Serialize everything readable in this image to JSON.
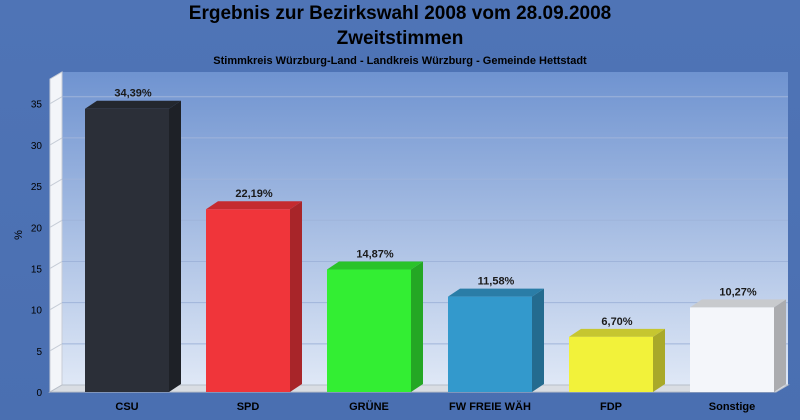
{
  "chart_data": {
    "type": "bar",
    "title": "Ergebnis zur Bezirkswahl 2008 vom 28.09.2008",
    "subtitle": "Zweitstimmen",
    "caption": "Stimmkreis Würzburg-Land - Landkreis Würzburg - Gemeinde Hettstadt",
    "ylabel": "%",
    "xlabel": "",
    "ylim": [
      0,
      38
    ],
    "yticks": [
      0,
      5,
      10,
      15,
      20,
      25,
      30,
      35
    ],
    "grid": true,
    "categories": [
      "CSU",
      "SPD",
      "GRÜNE",
      "FW FREIE WÄH",
      "FDP",
      "Sonstige"
    ],
    "values": [
      34.39,
      22.19,
      14.87,
      11.58,
      6.7,
      10.27
    ],
    "value_labels": [
      "34,39%",
      "22,19%",
      "14,87%",
      "11,58%",
      "6,70%",
      "10,27%"
    ],
    "colors": [
      "#2b2f38",
      "#f0353a",
      "#33ee33",
      "#3399cc",
      "#f2f23a",
      "#f4f6fa"
    ]
  }
}
